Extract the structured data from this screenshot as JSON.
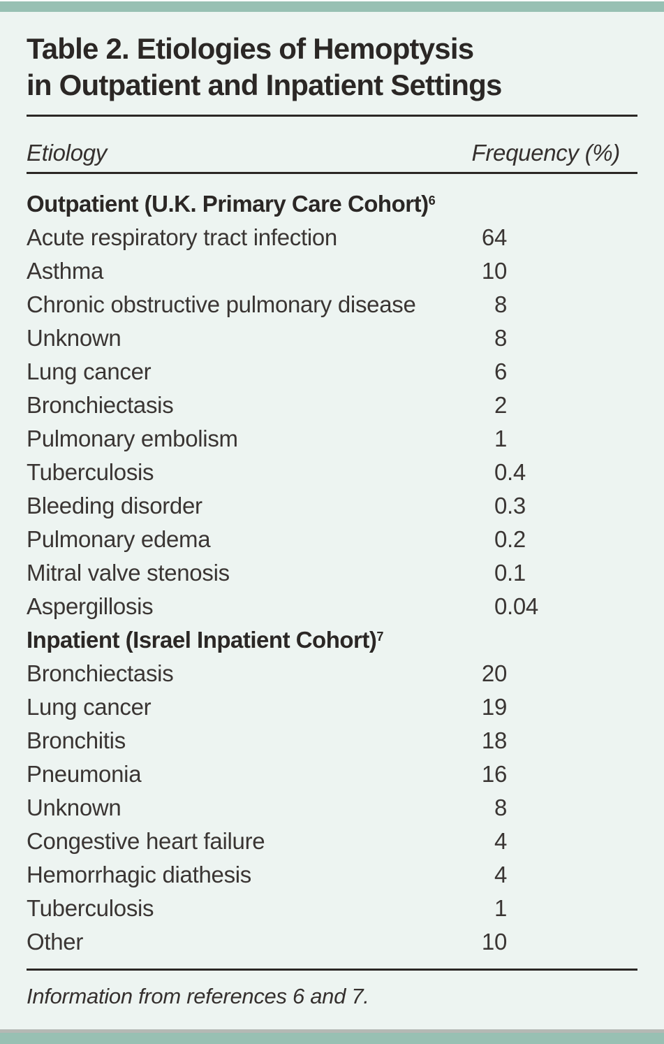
{
  "page": {
    "background_color": "#edf4f1",
    "accent_band_color": "#98c0b3",
    "gray_strip_color": "#b4b8b4",
    "rule_color": "#2b2725",
    "text_color": "#3a3533"
  },
  "title": {
    "line1": "Table 2. Etiologies of Hemoptysis",
    "line2": "in Outpatient and Inpatient Settings"
  },
  "columns": {
    "etiology": "Etiology",
    "frequency": "Frequency (%)"
  },
  "table": {
    "sections": [
      {
        "header": "Outpatient (U.K. Primary Care Cohort)",
        "ref_sup": "6",
        "rows": [
          {
            "etiology": "Acute respiratory tract infection",
            "frequency": "64"
          },
          {
            "etiology": "Asthma",
            "frequency": "10"
          },
          {
            "etiology": "Chronic obstructive pulmonary disease",
            "frequency": "8"
          },
          {
            "etiology": "Unknown",
            "frequency": "8"
          },
          {
            "etiology": "Lung cancer",
            "frequency": "6"
          },
          {
            "etiology": "Bronchiectasis",
            "frequency": "2"
          },
          {
            "etiology": "Pulmonary embolism",
            "frequency": "1"
          },
          {
            "etiology": "Tuberculosis",
            "frequency": "0.4"
          },
          {
            "etiology": "Bleeding disorder",
            "frequency": "0.3"
          },
          {
            "etiology": "Pulmonary edema",
            "frequency": "0.2"
          },
          {
            "etiology": "Mitral valve stenosis",
            "frequency": "0.1"
          },
          {
            "etiology": "Aspergillosis",
            "frequency": "0.04"
          }
        ]
      },
      {
        "header": "Inpatient (Israel Inpatient Cohort)",
        "ref_sup": "7",
        "rows": [
          {
            "etiology": "Bronchiectasis",
            "frequency": "20"
          },
          {
            "etiology": "Lung cancer",
            "frequency": "19"
          },
          {
            "etiology": "Bronchitis",
            "frequency": "18"
          },
          {
            "etiology": "Pneumonia",
            "frequency": "16"
          },
          {
            "etiology": "Unknown",
            "frequency": "8"
          },
          {
            "etiology": "Congestive heart failure",
            "frequency": "4"
          },
          {
            "etiology": "Hemorrhagic diathesis",
            "frequency": "4"
          },
          {
            "etiology": "Tuberculosis",
            "frequency": "1"
          },
          {
            "etiology": "Other",
            "frequency": "10"
          }
        ]
      }
    ]
  },
  "footer": {
    "note": "Information from references 6 and 7."
  }
}
